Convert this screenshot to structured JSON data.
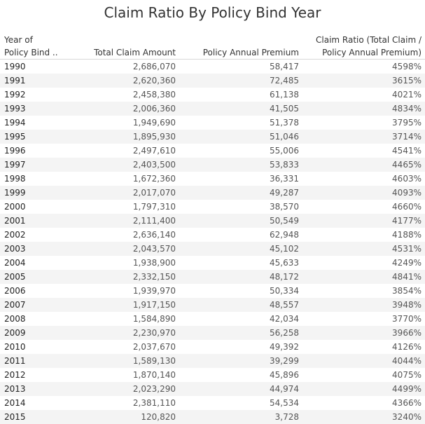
{
  "title": "Claim Ratio By Policy Bind Year",
  "headers": {
    "year_line1": "Year of",
    "year_line2": "Policy Bind ..",
    "claim": "Total Claim Amount",
    "premium": "Policy Annual Premium",
    "ratio_line1": "Claim Ratio (Total Claim /",
    "ratio_line2": "Policy Annual Premium)"
  },
  "rows": [
    {
      "year": "1990",
      "claim": "2,686,070",
      "premium": "58,417",
      "ratio": "4598%"
    },
    {
      "year": "1991",
      "claim": "2,620,360",
      "premium": "72,485",
      "ratio": "3615%"
    },
    {
      "year": "1992",
      "claim": "2,458,380",
      "premium": "61,138",
      "ratio": "4021%"
    },
    {
      "year": "1993",
      "claim": "2,006,360",
      "premium": "41,505",
      "ratio": "4834%"
    },
    {
      "year": "1994",
      "claim": "1,949,690",
      "premium": "51,378",
      "ratio": "3795%"
    },
    {
      "year": "1995",
      "claim": "1,895,930",
      "premium": "51,046",
      "ratio": "3714%"
    },
    {
      "year": "1996",
      "claim": "2,497,610",
      "premium": "55,006",
      "ratio": "4541%"
    },
    {
      "year": "1997",
      "claim": "2,403,500",
      "premium": "53,833",
      "ratio": "4465%"
    },
    {
      "year": "1998",
      "claim": "1,672,360",
      "premium": "36,331",
      "ratio": "4603%"
    },
    {
      "year": "1999",
      "claim": "2,017,070",
      "premium": "49,287",
      "ratio": "4093%"
    },
    {
      "year": "2000",
      "claim": "1,797,310",
      "premium": "38,570",
      "ratio": "4660%"
    },
    {
      "year": "2001",
      "claim": "2,111,400",
      "premium": "50,549",
      "ratio": "4177%"
    },
    {
      "year": "2002",
      "claim": "2,636,140",
      "premium": "62,948",
      "ratio": "4188%"
    },
    {
      "year": "2003",
      "claim": "2,043,570",
      "premium": "45,102",
      "ratio": "4531%"
    },
    {
      "year": "2004",
      "claim": "1,938,900",
      "premium": "45,633",
      "ratio": "4249%"
    },
    {
      "year": "2005",
      "claim": "2,332,150",
      "premium": "48,172",
      "ratio": "4841%"
    },
    {
      "year": "2006",
      "claim": "1,939,970",
      "premium": "50,334",
      "ratio": "3854%"
    },
    {
      "year": "2007",
      "claim": "1,917,150",
      "premium": "48,557",
      "ratio": "3948%"
    },
    {
      "year": "2008",
      "claim": "1,584,890",
      "premium": "42,034",
      "ratio": "3770%"
    },
    {
      "year": "2009",
      "claim": "2,230,970",
      "premium": "56,258",
      "ratio": "3966%"
    },
    {
      "year": "2010",
      "claim": "2,037,670",
      "premium": "49,392",
      "ratio": "4126%"
    },
    {
      "year": "2011",
      "claim": "1,589,130",
      "premium": "39,299",
      "ratio": "4044%"
    },
    {
      "year": "2012",
      "claim": "1,870,140",
      "premium": "45,896",
      "ratio": "4075%"
    },
    {
      "year": "2013",
      "claim": "2,023,290",
      "premium": "44,974",
      "ratio": "4499%"
    },
    {
      "year": "2014",
      "claim": "2,381,110",
      "premium": "54,534",
      "ratio": "4366%"
    },
    {
      "year": "2015",
      "claim": "120,820",
      "premium": "3,728",
      "ratio": "3240%"
    }
  ]
}
